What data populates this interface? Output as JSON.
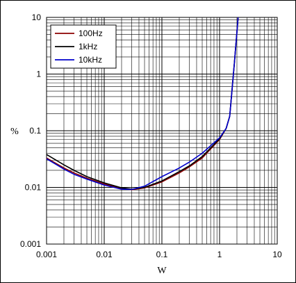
{
  "chart_data": {
    "type": "line",
    "title": "",
    "xlabel": "W",
    "ylabel": "%",
    "x_scale": "log",
    "y_scale": "log",
    "xlim": [
      0.001,
      10
    ],
    "ylim": [
      0.001,
      10
    ],
    "x_ticks": [
      {
        "value": 0.001,
        "label": "0.001"
      },
      {
        "value": 0.01,
        "label": "0.01"
      },
      {
        "value": 0.1,
        "label": "0.1"
      },
      {
        "value": 1,
        "label": "1"
      },
      {
        "value": 10,
        "label": "10"
      }
    ],
    "y_ticks": [
      {
        "value": 0.001,
        "label": "0.001"
      },
      {
        "value": 0.01,
        "label": "0.01"
      },
      {
        "value": 0.1,
        "label": "0.1"
      },
      {
        "value": 1,
        "label": "1"
      },
      {
        "value": 10,
        "label": "10"
      }
    ],
    "grid": true,
    "legend_position": "top-left",
    "series": [
      {
        "name": "100Hz",
        "color": "#8b0000",
        "points": [
          [
            0.001,
            0.033
          ],
          [
            0.002,
            0.022
          ],
          [
            0.003,
            0.018
          ],
          [
            0.005,
            0.0145
          ],
          [
            0.01,
            0.0115
          ],
          [
            0.02,
            0.0096
          ],
          [
            0.03,
            0.0091
          ],
          [
            0.05,
            0.0098
          ],
          [
            0.1,
            0.0125
          ],
          [
            0.2,
            0.018
          ],
          [
            0.3,
            0.023
          ],
          [
            0.5,
            0.033
          ],
          [
            1,
            0.07
          ],
          [
            1.3,
            0.11
          ],
          [
            1.5,
            0.18
          ],
          [
            1.8,
            1.5
          ],
          [
            2.1,
            10
          ]
        ]
      },
      {
        "name": "1kHz",
        "color": "#000000",
        "points": [
          [
            0.001,
            0.038
          ],
          [
            0.002,
            0.025
          ],
          [
            0.003,
            0.02
          ],
          [
            0.005,
            0.0155
          ],
          [
            0.01,
            0.012
          ],
          [
            0.02,
            0.0098
          ],
          [
            0.03,
            0.0093
          ],
          [
            0.05,
            0.01
          ],
          [
            0.1,
            0.013
          ],
          [
            0.2,
            0.019
          ],
          [
            0.3,
            0.024
          ],
          [
            0.5,
            0.035
          ],
          [
            1,
            0.072
          ],
          [
            1.3,
            0.11
          ],
          [
            1.5,
            0.18
          ],
          [
            1.8,
            1.5
          ],
          [
            2.1,
            10
          ]
        ]
      },
      {
        "name": "10kHz",
        "color": "#0000cc",
        "points": [
          [
            0.001,
            0.032
          ],
          [
            0.002,
            0.021
          ],
          [
            0.003,
            0.017
          ],
          [
            0.005,
            0.014
          ],
          [
            0.01,
            0.011
          ],
          [
            0.02,
            0.0093
          ],
          [
            0.03,
            0.0092
          ],
          [
            0.05,
            0.0105
          ],
          [
            0.1,
            0.0155
          ],
          [
            0.2,
            0.022
          ],
          [
            0.3,
            0.028
          ],
          [
            0.5,
            0.04
          ],
          [
            1,
            0.075
          ],
          [
            1.3,
            0.11
          ],
          [
            1.5,
            0.18
          ],
          [
            1.8,
            1.5
          ],
          [
            2.1,
            10
          ]
        ]
      }
    ]
  }
}
